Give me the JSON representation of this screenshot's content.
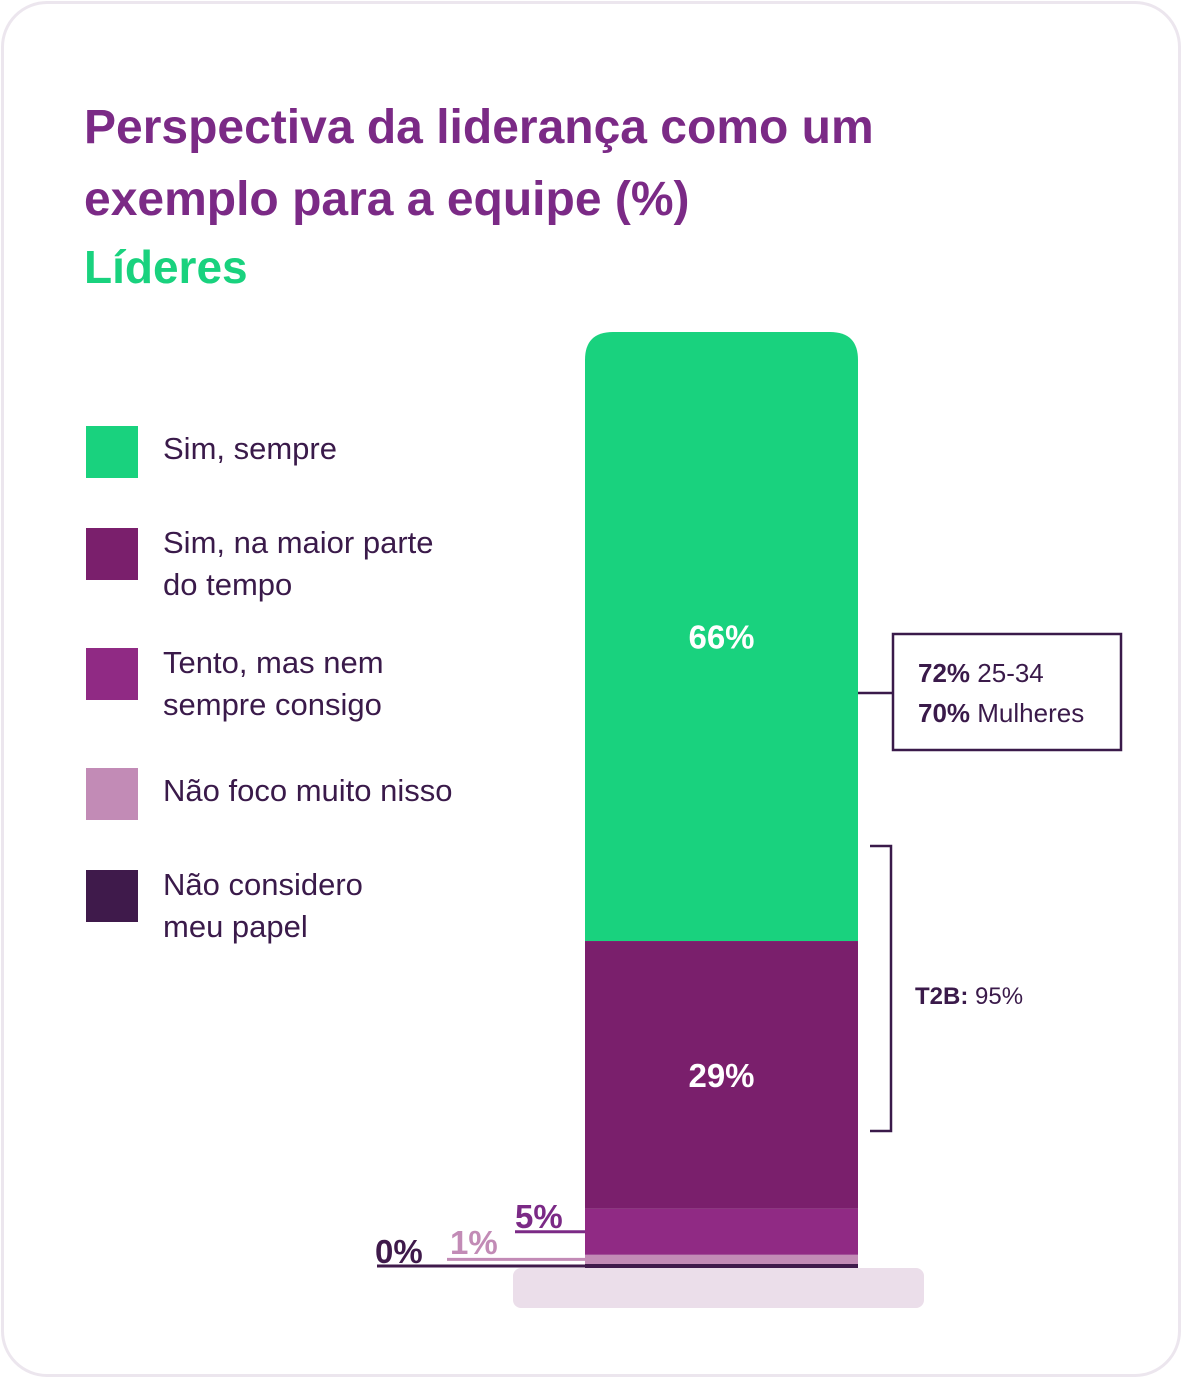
{
  "title": "Perspectiva da liderança como um exemplo para a equipe (%)",
  "subtitle": "Líderes",
  "colors": {
    "sim_sempre": "#19d27e",
    "maior_parte": "#7a1f6c",
    "tento": "#902a84",
    "nao_foco": "#c28bb6",
    "nao_considero": "#3f1a4b",
    "accent_title": "#7b2a86",
    "accent_subtitle": "#19d27e",
    "base_plate": "#ebdeea"
  },
  "legend": [
    {
      "label": "Sim, sempre",
      "color": "#19d27e"
    },
    {
      "label": "Sim, na maior parte do tempo",
      "color": "#7a1f6c"
    },
    {
      "label": "Tento, mas nem sempre consigo",
      "color": "#902a84"
    },
    {
      "label": "Não foco muito nisso",
      "color": "#c28bb6"
    },
    {
      "label": "Não considero meu papel",
      "color": "#3f1a4b"
    }
  ],
  "chart_data": {
    "type": "bar",
    "stacked": true,
    "categories": [
      "Líderes"
    ],
    "series": [
      {
        "name": "Sim, sempre",
        "values": [
          66
        ],
        "label": "66%"
      },
      {
        "name": "Sim, na maior parte do tempo",
        "values": [
          29
        ],
        "label": "29%"
      },
      {
        "name": "Tento, mas nem sempre consigo",
        "values": [
          5
        ],
        "label": "5%"
      },
      {
        "name": "Não foco muito nisso",
        "values": [
          1
        ],
        "label": "1%"
      },
      {
        "name": "Não considero meu papel",
        "values": [
          0
        ],
        "label": "0%"
      }
    ],
    "annotations": {
      "callout": [
        {
          "bold": "72%",
          "text": " 25-34"
        },
        {
          "bold": "70%",
          "text": " Mulheres"
        }
      ],
      "t2b": {
        "bold": "T2B:",
        "text": " 95%"
      }
    }
  }
}
